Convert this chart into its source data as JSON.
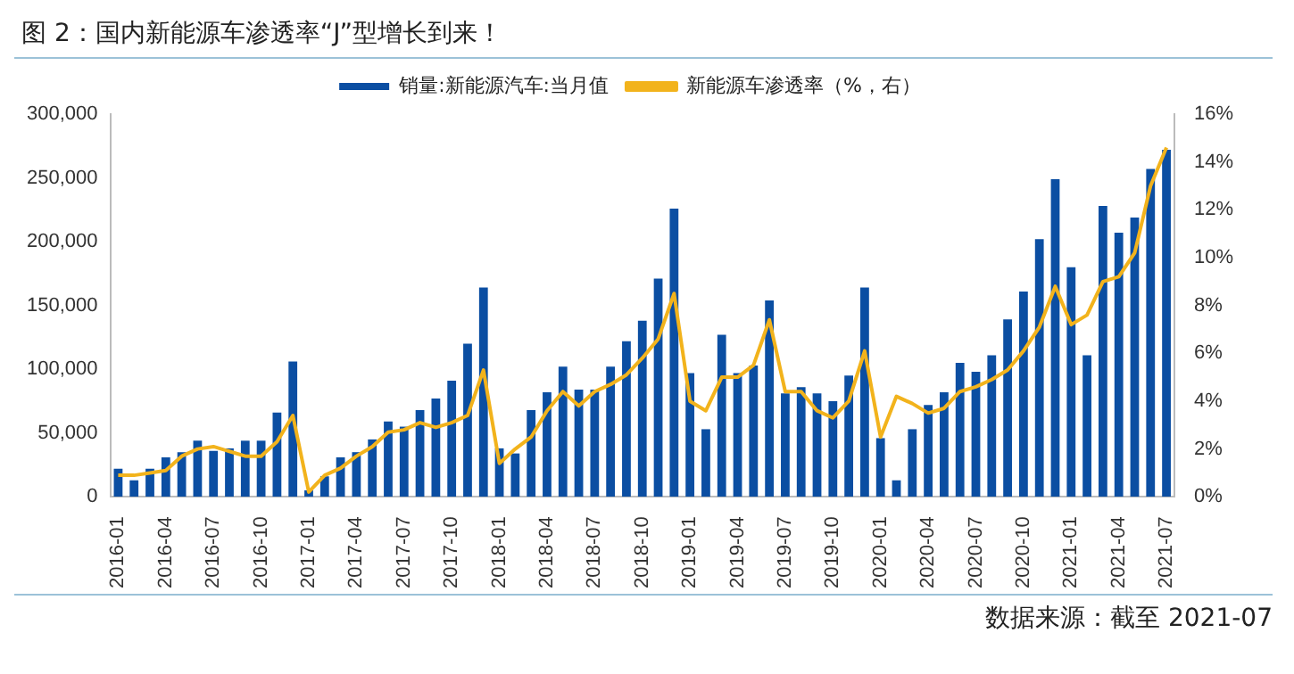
{
  "chart_data": {
    "type": "bar",
    "title": "图 2：国内新能源车渗透率“J”型增长到来！",
    "categories": [
      "2016-01",
      null,
      null,
      "2016-04",
      null,
      null,
      "2016-07",
      null,
      null,
      "2016-10",
      null,
      null,
      "2017-01",
      null,
      null,
      "2017-04",
      null,
      null,
      "2017-07",
      null,
      null,
      "2017-10",
      null,
      null,
      "2018-01",
      null,
      null,
      "2018-04",
      null,
      null,
      "2018-07",
      null,
      null,
      "2018-10",
      null,
      null,
      "2019-01",
      null,
      null,
      "2019-04",
      null,
      null,
      "2019-07",
      null,
      null,
      "2019-10",
      null,
      null,
      "2020-01",
      null,
      null,
      "2020-04",
      null,
      null,
      "2020-07",
      null,
      null,
      "2020-10",
      null,
      null,
      "2021-01",
      null,
      null,
      "2021-04",
      null,
      null,
      "2021-07"
    ],
    "series": [
      {
        "name": "销量:新能源汽车:当月值",
        "color": "#0b4ea2",
        "values": [
          22000,
          13000,
          22000,
          31000,
          35000,
          44000,
          36000,
          38000,
          44000,
          44000,
          66000,
          106000,
          5000,
          16000,
          31000,
          35000,
          45000,
          59000,
          55000,
          68000,
          77000,
          91000,
          120000,
          164000,
          38000,
          34000,
          68000,
          82000,
          102000,
          84000,
          84000,
          102000,
          122000,
          138000,
          171000,
          226000,
          97000,
          53000,
          127000,
          97000,
          103000,
          154000,
          81000,
          86000,
          81000,
          75000,
          95000,
          164000,
          46000,
          13000,
          53000,
          72000,
          82000,
          105000,
          98000,
          111000,
          139000,
          161000,
          202000,
          249000,
          180000,
          111000,
          228000,
          207000,
          219000,
          257000,
          272000
        ]
      },
      {
        "name": "新能源车渗透率（%，右）",
        "type": "line",
        "axis": "y2",
        "color": "#f2b31c",
        "values": [
          0.9,
          0.9,
          1.0,
          1.1,
          1.7,
          2.0,
          2.1,
          1.9,
          1.7,
          1.7,
          2.3,
          3.4,
          0.2,
          0.9,
          1.2,
          1.7,
          2.1,
          2.7,
          2.8,
          3.1,
          2.9,
          3.1,
          3.4,
          5.3,
          1.4,
          2.0,
          2.5,
          3.6,
          4.4,
          3.8,
          4.4,
          4.7,
          5.1,
          5.8,
          6.6,
          8.5,
          4.0,
          3.6,
          5.0,
          5.0,
          5.5,
          7.4,
          4.4,
          4.4,
          3.6,
          3.3,
          4.0,
          6.1,
          2.5,
          4.2,
          3.9,
          3.5,
          3.7,
          4.4,
          4.6,
          4.9,
          5.3,
          6.1,
          7.1,
          8.8,
          7.2,
          7.6,
          9.0,
          9.2,
          10.2,
          13.0,
          14.6
        ]
      }
    ],
    "ylim": [
      0,
      300000
    ],
    "yticks": [
      {
        "value": 0,
        "label": "0"
      },
      {
        "value": 50000,
        "label": "50,000"
      },
      {
        "value": 100000,
        "label": "100,000"
      },
      {
        "value": 150000,
        "label": "150,000"
      },
      {
        "value": 200000,
        "label": "200,000"
      },
      {
        "value": 250000,
        "label": "250,000"
      },
      {
        "value": 300000,
        "label": "300,000"
      }
    ],
    "y2lim": [
      0,
      16
    ],
    "y2ticks": [
      {
        "value": 0,
        "label": "0%"
      },
      {
        "value": 2,
        "label": "2%"
      },
      {
        "value": 4,
        "label": "4%"
      },
      {
        "value": 6,
        "label": "6%"
      },
      {
        "value": 8,
        "label": "8%"
      },
      {
        "value": 10,
        "label": "10%"
      },
      {
        "value": 12,
        "label": "12%"
      },
      {
        "value": 14,
        "label": "14%"
      },
      {
        "value": 16,
        "label": "16%"
      }
    ],
    "legend": "top",
    "annotations": [
      "数据来源：截至 2021-07"
    ]
  }
}
